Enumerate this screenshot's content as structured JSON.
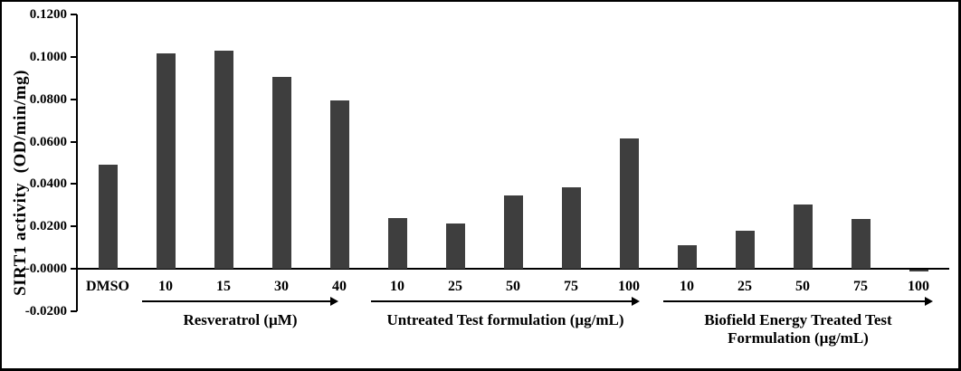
{
  "chart_data": {
    "type": "bar",
    "title": "",
    "ylabel": "SIRT1 activity  (OD/min/mg)",
    "xlabel": "",
    "ylim": [
      -0.02,
      0.12
    ],
    "ytick_step": 0.02,
    "ytick_decimals": 4,
    "ytick_labels": [
      "0.1200",
      "0.1000",
      "0.0800",
      "0.0600",
      "0.0400",
      "0.0200",
      "0.0000",
      "-0.0200"
    ],
    "grid": false,
    "legend": null,
    "bar_color": "#3e3e3e",
    "categories": [
      "DMSO",
      "10",
      "15",
      "30",
      "40",
      "10",
      "25",
      "50",
      "75",
      "100",
      "10",
      "25",
      "50",
      "75",
      "100"
    ],
    "values": [
      0.049,
      0.1015,
      0.103,
      0.0905,
      0.0795,
      0.024,
      0.0215,
      0.0345,
      0.0385,
      0.0613,
      0.0113,
      0.018,
      0.0305,
      0.0235,
      -0.001
    ],
    "groups": [
      {
        "label_lines": [
          "Resveratrol (µM)"
        ],
        "start_index": 1,
        "end_index": 4
      },
      {
        "label_lines": [
          "Untreated Test formulation (µg/mL)"
        ],
        "start_index": 5,
        "end_index": 9
      },
      {
        "label_lines": [
          "Biofield Energy Treated Test",
          "Formulation (µg/mL)"
        ],
        "start_index": 10,
        "end_index": 14
      }
    ]
  }
}
